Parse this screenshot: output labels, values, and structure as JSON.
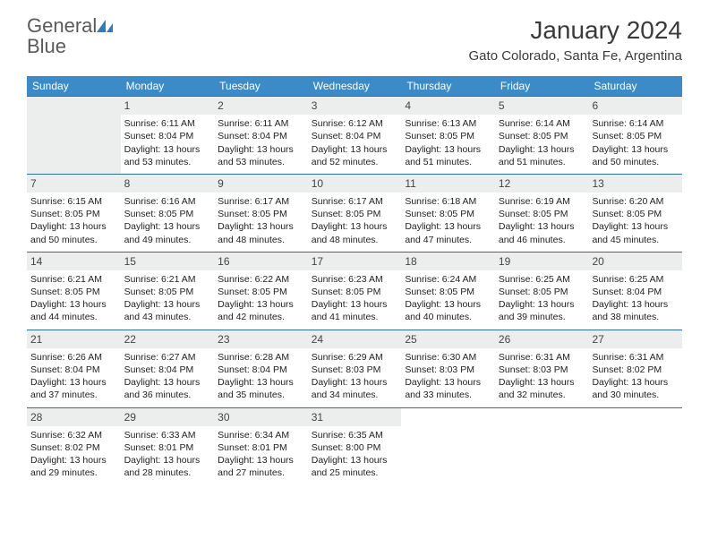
{
  "logo": {
    "text_general": "General",
    "text_blue": "Blue"
  },
  "title": "January 2024",
  "location": "Gato Colorado, Santa Fe, Argentina",
  "colors": {
    "header_bg": "#3b8bc8",
    "week_border": "#2f6fa0",
    "daynum_bg": "#eceded",
    "text": "#222222"
  },
  "days_of_week": [
    "Sunday",
    "Monday",
    "Tuesday",
    "Wednesday",
    "Thursday",
    "Friday",
    "Saturday"
  ],
  "weeks": [
    [
      {
        "n": "",
        "blank": true
      },
      {
        "n": "1",
        "sunrise": "6:11 AM",
        "sunset": "8:04 PM",
        "daylight": "13 hours and 53 minutes."
      },
      {
        "n": "2",
        "sunrise": "6:11 AM",
        "sunset": "8:04 PM",
        "daylight": "13 hours and 53 minutes."
      },
      {
        "n": "3",
        "sunrise": "6:12 AM",
        "sunset": "8:04 PM",
        "daylight": "13 hours and 52 minutes."
      },
      {
        "n": "4",
        "sunrise": "6:13 AM",
        "sunset": "8:05 PM",
        "daylight": "13 hours and 51 minutes."
      },
      {
        "n": "5",
        "sunrise": "6:14 AM",
        "sunset": "8:05 PM",
        "daylight": "13 hours and 51 minutes."
      },
      {
        "n": "6",
        "sunrise": "6:14 AM",
        "sunset": "8:05 PM",
        "daylight": "13 hours and 50 minutes."
      }
    ],
    [
      {
        "n": "7",
        "sunrise": "6:15 AM",
        "sunset": "8:05 PM",
        "daylight": "13 hours and 50 minutes."
      },
      {
        "n": "8",
        "sunrise": "6:16 AM",
        "sunset": "8:05 PM",
        "daylight": "13 hours and 49 minutes."
      },
      {
        "n": "9",
        "sunrise": "6:17 AM",
        "sunset": "8:05 PM",
        "daylight": "13 hours and 48 minutes."
      },
      {
        "n": "10",
        "sunrise": "6:17 AM",
        "sunset": "8:05 PM",
        "daylight": "13 hours and 48 minutes."
      },
      {
        "n": "11",
        "sunrise": "6:18 AM",
        "sunset": "8:05 PM",
        "daylight": "13 hours and 47 minutes."
      },
      {
        "n": "12",
        "sunrise": "6:19 AM",
        "sunset": "8:05 PM",
        "daylight": "13 hours and 46 minutes."
      },
      {
        "n": "13",
        "sunrise": "6:20 AM",
        "sunset": "8:05 PM",
        "daylight": "13 hours and 45 minutes."
      }
    ],
    [
      {
        "n": "14",
        "sunrise": "6:21 AM",
        "sunset": "8:05 PM",
        "daylight": "13 hours and 44 minutes."
      },
      {
        "n": "15",
        "sunrise": "6:21 AM",
        "sunset": "8:05 PM",
        "daylight": "13 hours and 43 minutes."
      },
      {
        "n": "16",
        "sunrise": "6:22 AM",
        "sunset": "8:05 PM",
        "daylight": "13 hours and 42 minutes."
      },
      {
        "n": "17",
        "sunrise": "6:23 AM",
        "sunset": "8:05 PM",
        "daylight": "13 hours and 41 minutes."
      },
      {
        "n": "18",
        "sunrise": "6:24 AM",
        "sunset": "8:05 PM",
        "daylight": "13 hours and 40 minutes."
      },
      {
        "n": "19",
        "sunrise": "6:25 AM",
        "sunset": "8:05 PM",
        "daylight": "13 hours and 39 minutes."
      },
      {
        "n": "20",
        "sunrise": "6:25 AM",
        "sunset": "8:04 PM",
        "daylight": "13 hours and 38 minutes."
      }
    ],
    [
      {
        "n": "21",
        "sunrise": "6:26 AM",
        "sunset": "8:04 PM",
        "daylight": "13 hours and 37 minutes."
      },
      {
        "n": "22",
        "sunrise": "6:27 AM",
        "sunset": "8:04 PM",
        "daylight": "13 hours and 36 minutes."
      },
      {
        "n": "23",
        "sunrise": "6:28 AM",
        "sunset": "8:04 PM",
        "daylight": "13 hours and 35 minutes."
      },
      {
        "n": "24",
        "sunrise": "6:29 AM",
        "sunset": "8:03 PM",
        "daylight": "13 hours and 34 minutes."
      },
      {
        "n": "25",
        "sunrise": "6:30 AM",
        "sunset": "8:03 PM",
        "daylight": "13 hours and 33 minutes."
      },
      {
        "n": "26",
        "sunrise": "6:31 AM",
        "sunset": "8:03 PM",
        "daylight": "13 hours and 32 minutes."
      },
      {
        "n": "27",
        "sunrise": "6:31 AM",
        "sunset": "8:02 PM",
        "daylight": "13 hours and 30 minutes."
      }
    ],
    [
      {
        "n": "28",
        "sunrise": "6:32 AM",
        "sunset": "8:02 PM",
        "daylight": "13 hours and 29 minutes."
      },
      {
        "n": "29",
        "sunrise": "6:33 AM",
        "sunset": "8:01 PM",
        "daylight": "13 hours and 28 minutes."
      },
      {
        "n": "30",
        "sunrise": "6:34 AM",
        "sunset": "8:01 PM",
        "daylight": "13 hours and 27 minutes."
      },
      {
        "n": "31",
        "sunrise": "6:35 AM",
        "sunset": "8:00 PM",
        "daylight": "13 hours and 25 minutes."
      },
      {
        "n": "",
        "blank": true,
        "trailing": true
      },
      {
        "n": "",
        "blank": true,
        "trailing": true
      },
      {
        "n": "",
        "blank": true,
        "trailing": true
      }
    ]
  ],
  "labels": {
    "sunrise_prefix": "Sunrise: ",
    "sunset_prefix": "Sunset: ",
    "daylight_prefix": "Daylight: "
  }
}
